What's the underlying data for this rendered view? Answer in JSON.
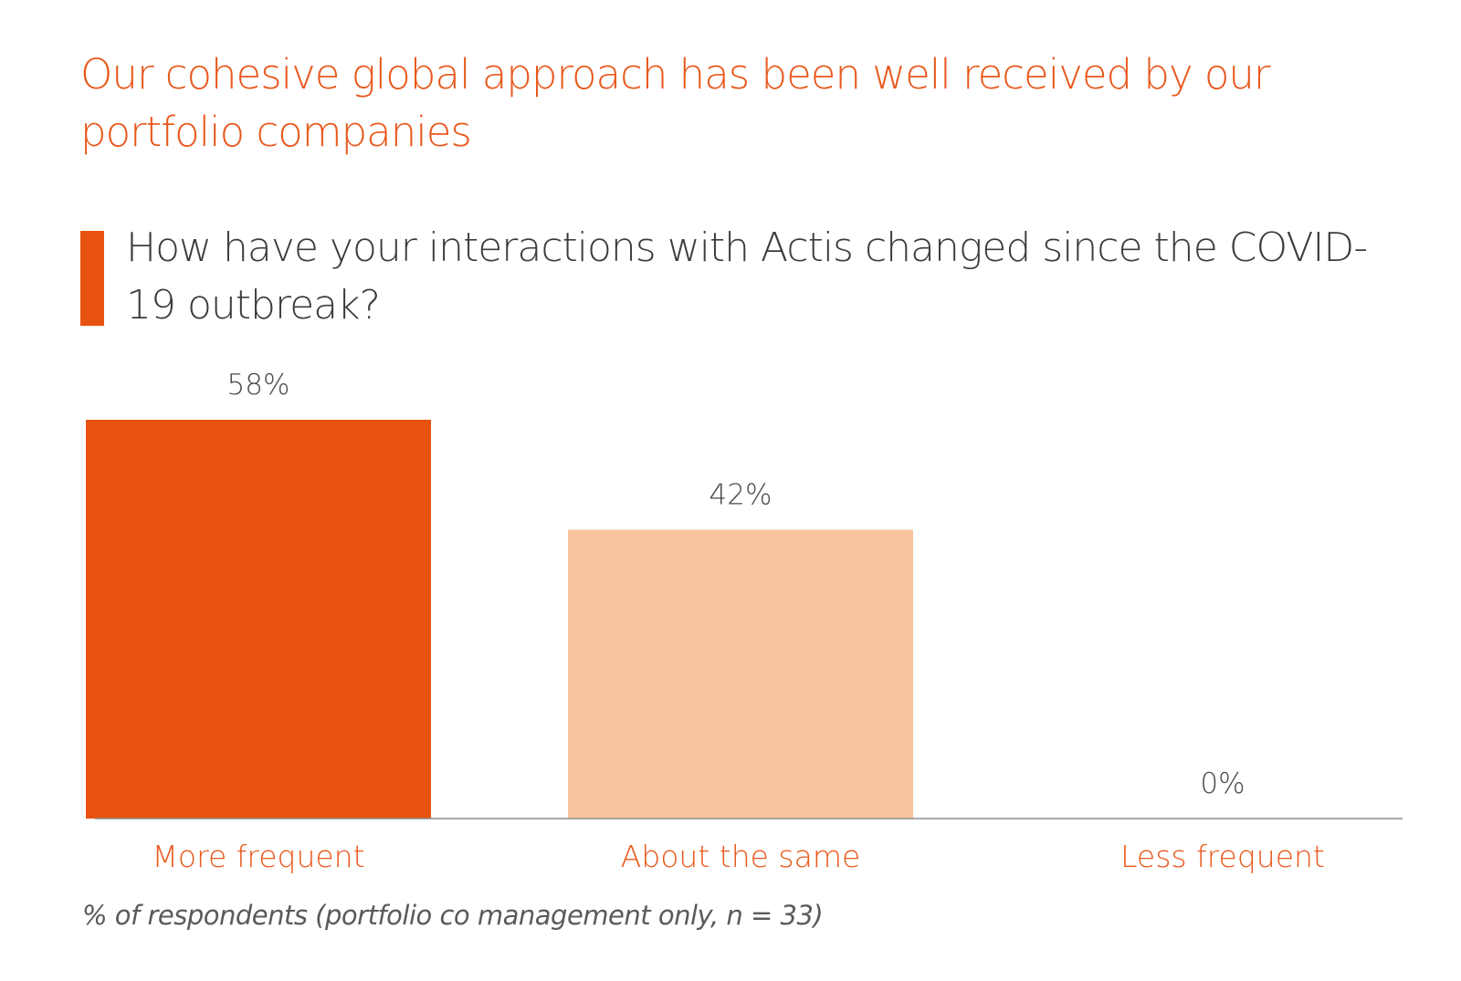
{
  "headline": "Our cohesive global approach has been well received by our portfolio companies",
  "question": "How have your interactions with Actis changed since the COVID-19 outbreak?",
  "footnote": "% of respondents (portfolio co management only, n = 33)",
  "colors": {
    "headline": "#e8581c",
    "accent_bar": "#e8520f",
    "category_label": "#e8581c",
    "value_label": "#4a4a4a",
    "axis": "#8c8c8c"
  },
  "chart_data": {
    "type": "bar",
    "title": "How have your interactions with Actis changed since the COVID-19 outbreak?",
    "categories": [
      "More frequent",
      "About the same",
      "Less frequent"
    ],
    "values": [
      58,
      42,
      0
    ],
    "value_labels": [
      "58%",
      "42%",
      "0%"
    ],
    "bar_colors": [
      "#e8520f",
      "#f9c39e",
      "#f9c39e"
    ],
    "xlabel": "",
    "ylabel": "",
    "ylim": [
      0,
      58
    ],
    "grid": false,
    "legend": "none"
  }
}
